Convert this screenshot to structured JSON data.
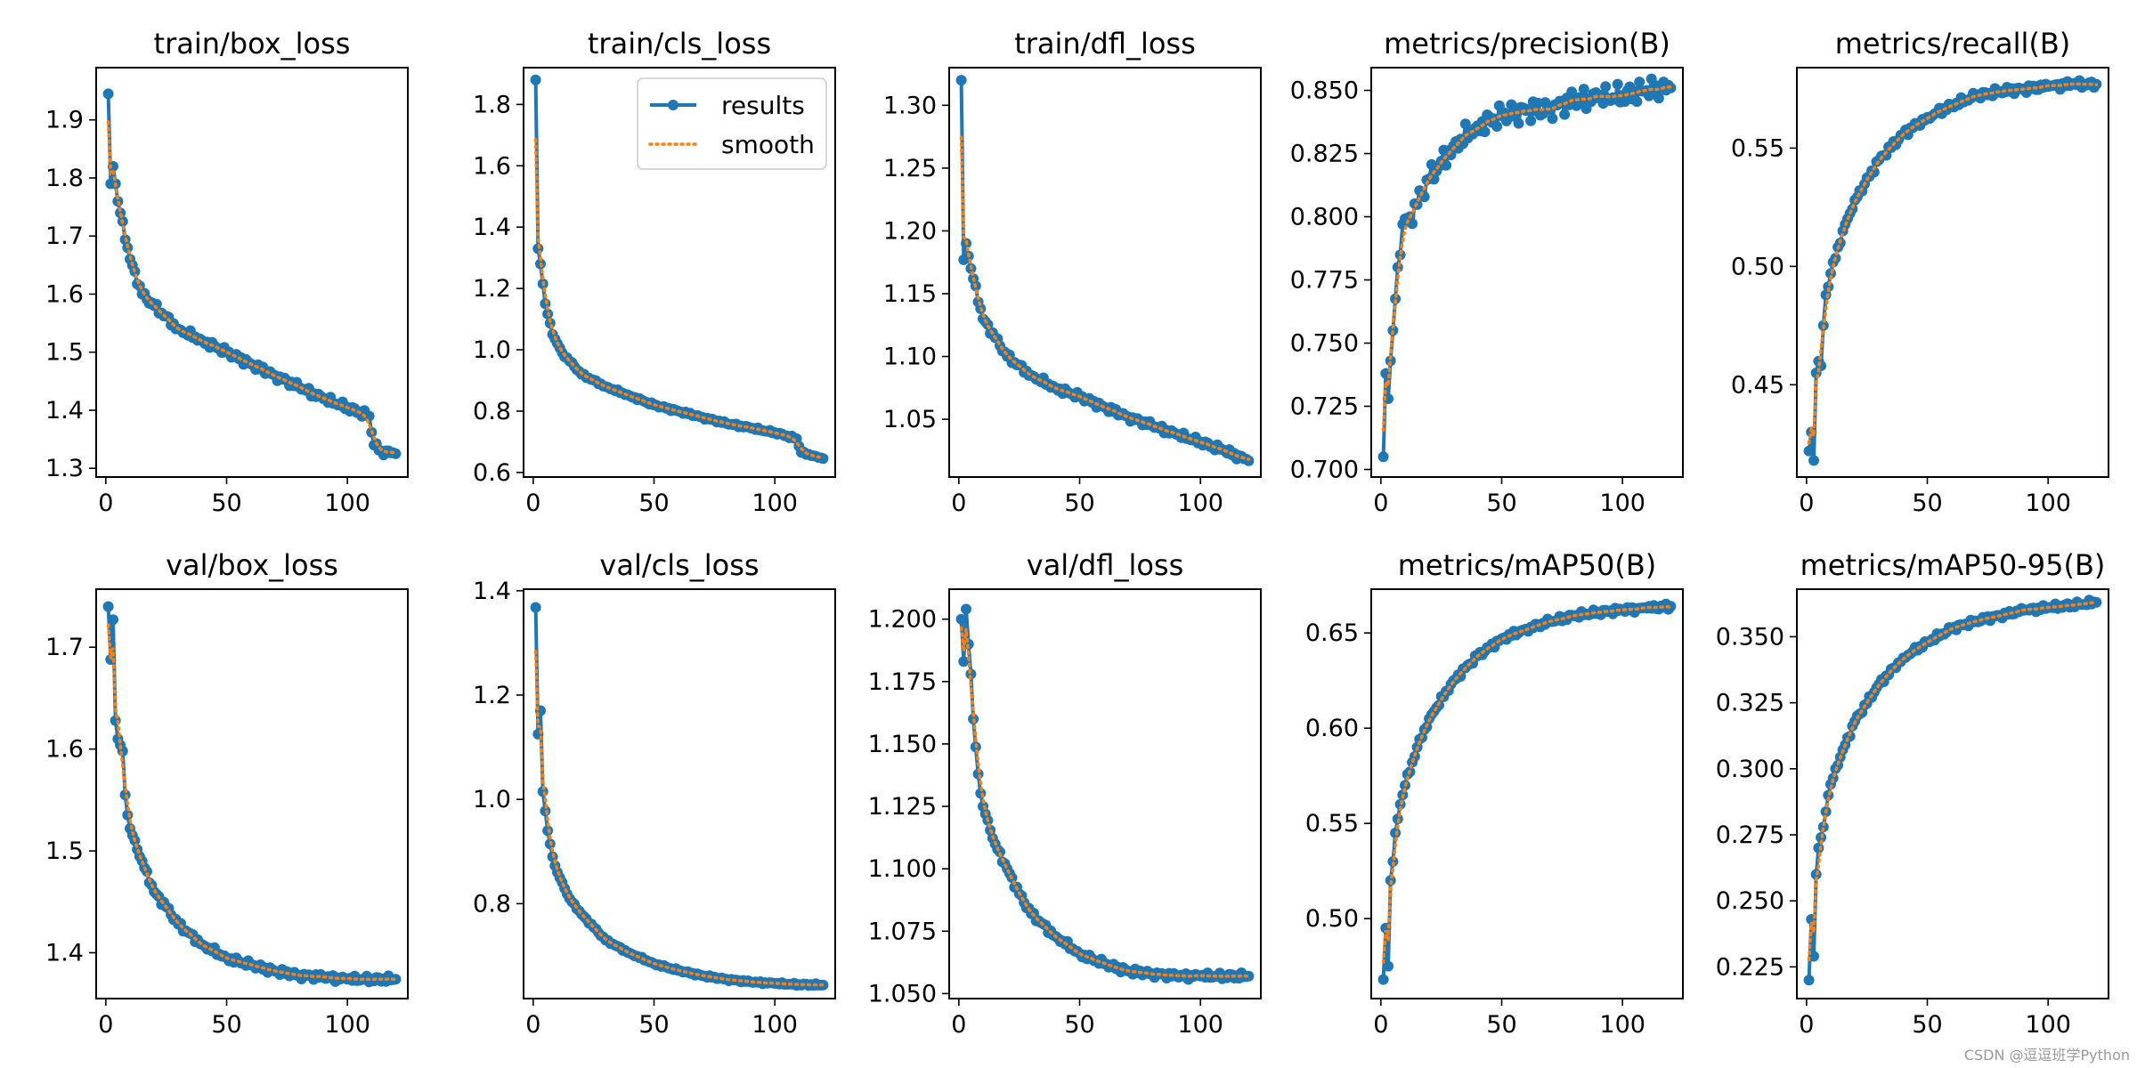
{
  "colors": {
    "results": "#1f77b4",
    "smooth": "#ff7f0e"
  },
  "legend": {
    "results_label": "results",
    "smooth_label": "smooth"
  },
  "watermark": "CSDN @逗逗班学Python",
  "chart_data": [
    {
      "type": "line",
      "title": "train/box_loss",
      "xlim": [
        -4,
        125
      ],
      "ylim": [
        1.285,
        1.99
      ],
      "x_ticks": [
        0,
        50,
        100
      ],
      "y_ticks": [
        1.3,
        1.4,
        1.5,
        1.6,
        1.7,
        1.8,
        1.9
      ],
      "y_tick_labels": [
        "1.3",
        "1.4",
        "1.5",
        "1.6",
        "1.7",
        "1.8",
        "1.9"
      ],
      "epochs": 120,
      "anchors": [
        [
          1,
          1.945
        ],
        [
          2,
          1.79
        ],
        [
          3,
          1.82
        ],
        [
          5,
          1.76
        ],
        [
          10,
          1.66
        ],
        [
          15,
          1.6
        ],
        [
          20,
          1.58
        ],
        [
          30,
          1.54
        ],
        [
          40,
          1.52
        ],
        [
          50,
          1.5
        ],
        [
          60,
          1.48
        ],
        [
          70,
          1.46
        ],
        [
          80,
          1.44
        ],
        [
          90,
          1.42
        ],
        [
          100,
          1.405
        ],
        [
          109,
          1.39
        ],
        [
          111,
          1.34
        ],
        [
          114,
          1.33
        ],
        [
          120,
          1.325
        ]
      ],
      "wiggle": 0.006,
      "legend": false
    },
    {
      "type": "line",
      "title": "train/cls_loss",
      "xlim": [
        -4,
        125
      ],
      "ylim": [
        0.585,
        1.92
      ],
      "x_ticks": [
        0,
        50,
        100
      ],
      "y_ticks": [
        0.6,
        0.8,
        1.0,
        1.2,
        1.4,
        1.6,
        1.8
      ],
      "y_tick_labels": [
        "0.6",
        "0.8",
        "1.0",
        "1.2",
        "1.4",
        "1.6",
        "1.8"
      ],
      "epochs": 120,
      "anchors": [
        [
          1,
          1.88
        ],
        [
          2,
          1.33
        ],
        [
          3,
          1.28
        ],
        [
          5,
          1.15
        ],
        [
          8,
          1.05
        ],
        [
          12,
          0.99
        ],
        [
          20,
          0.92
        ],
        [
          30,
          0.88
        ],
        [
          40,
          0.85
        ],
        [
          50,
          0.82
        ],
        [
          60,
          0.8
        ],
        [
          70,
          0.78
        ],
        [
          80,
          0.76
        ],
        [
          90,
          0.745
        ],
        [
          100,
          0.73
        ],
        [
          109,
          0.71
        ],
        [
          111,
          0.665
        ],
        [
          115,
          0.655
        ],
        [
          120,
          0.645
        ]
      ],
      "wiggle": 0.004,
      "legend": true
    },
    {
      "type": "line",
      "title": "train/dfl_loss",
      "xlim": [
        -4,
        125
      ],
      "ylim": [
        1.004,
        1.33
      ],
      "x_ticks": [
        0,
        50,
        100
      ],
      "y_ticks": [
        1.05,
        1.1,
        1.15,
        1.2,
        1.25,
        1.3
      ],
      "y_tick_labels": [
        "1.05",
        "1.10",
        "1.15",
        "1.20",
        "1.25",
        "1.30"
      ],
      "epochs": 120,
      "anchors": [
        [
          1,
          1.32
        ],
        [
          2,
          1.177
        ],
        [
          3,
          1.19
        ],
        [
          5,
          1.17
        ],
        [
          10,
          1.13
        ],
        [
          15,
          1.115
        ],
        [
          20,
          1.1
        ],
        [
          30,
          1.085
        ],
        [
          40,
          1.075
        ],
        [
          50,
          1.068
        ],
        [
          60,
          1.06
        ],
        [
          70,
          1.052
        ],
        [
          80,
          1.045
        ],
        [
          90,
          1.038
        ],
        [
          100,
          1.032
        ],
        [
          110,
          1.025
        ],
        [
          120,
          1.017
        ]
      ],
      "wiggle": 0.0025,
      "legend": false
    },
    {
      "type": "line",
      "title": "metrics/precision(B)",
      "xlim": [
        -4,
        125
      ],
      "ylim": [
        0.697,
        0.859
      ],
      "x_ticks": [
        0,
        50,
        100
      ],
      "y_ticks": [
        0.7,
        0.725,
        0.75,
        0.775,
        0.8,
        0.825,
        0.85
      ],
      "y_tick_labels": [
        "0.700",
        "0.725",
        "0.750",
        "0.775",
        "0.800",
        "0.825",
        "0.850"
      ],
      "epochs": 120,
      "anchors": [
        [
          1,
          0.705
        ],
        [
          2,
          0.738
        ],
        [
          3,
          0.728
        ],
        [
          4,
          0.743
        ],
        [
          5,
          0.755
        ],
        [
          7,
          0.78
        ],
        [
          9,
          0.797
        ],
        [
          12,
          0.8
        ],
        [
          20,
          0.815
        ],
        [
          30,
          0.828
        ],
        [
          40,
          0.836
        ],
        [
          50,
          0.84
        ],
        [
          60,
          0.842
        ],
        [
          70,
          0.843
        ],
        [
          80,
          0.846
        ],
        [
          90,
          0.847
        ],
        [
          100,
          0.848
        ],
        [
          110,
          0.85
        ],
        [
          120,
          0.851
        ]
      ],
      "wiggle": 0.004,
      "legend": false
    },
    {
      "type": "line",
      "title": "metrics/recall(B)",
      "xlim": [
        -4,
        125
      ],
      "ylim": [
        0.411,
        0.584
      ],
      "x_ticks": [
        0,
        50,
        100
      ],
      "y_ticks": [
        0.45,
        0.5,
        0.55
      ],
      "y_tick_labels": [
        "0.45",
        "0.50",
        "0.55"
      ],
      "epochs": 120,
      "anchors": [
        [
          1,
          0.422
        ],
        [
          2,
          0.43
        ],
        [
          3,
          0.418
        ],
        [
          4,
          0.455
        ],
        [
          5,
          0.46
        ],
        [
          6,
          0.458
        ],
        [
          7,
          0.475
        ],
        [
          8,
          0.488
        ],
        [
          10,
          0.497
        ],
        [
          15,
          0.515
        ],
        [
          20,
          0.528
        ],
        [
          30,
          0.545
        ],
        [
          40,
          0.556
        ],
        [
          50,
          0.563
        ],
        [
          60,
          0.568
        ],
        [
          70,
          0.572
        ],
        [
          80,
          0.574
        ],
        [
          90,
          0.575
        ],
        [
          100,
          0.576
        ],
        [
          110,
          0.577
        ],
        [
          120,
          0.577
        ]
      ],
      "wiggle": 0.0015,
      "legend": false
    },
    {
      "type": "line",
      "title": "val/box_loss",
      "xlim": [
        -4,
        125
      ],
      "ylim": [
        1.355,
        1.757
      ],
      "x_ticks": [
        0,
        50,
        100
      ],
      "y_ticks": [
        1.4,
        1.5,
        1.6,
        1.7
      ],
      "y_tick_labels": [
        "1.4",
        "1.5",
        "1.6",
        "1.7"
      ],
      "epochs": 120,
      "anchors": [
        [
          1,
          1.74
        ],
        [
          2,
          1.688
        ],
        [
          3,
          1.727
        ],
        [
          4,
          1.628
        ],
        [
          5,
          1.61
        ],
        [
          7,
          1.598
        ],
        [
          8,
          1.555
        ],
        [
          10,
          1.522
        ],
        [
          15,
          1.49
        ],
        [
          20,
          1.46
        ],
        [
          25,
          1.445
        ],
        [
          30,
          1.428
        ],
        [
          40,
          1.408
        ],
        [
          50,
          1.395
        ],
        [
          60,
          1.388
        ],
        [
          70,
          1.382
        ],
        [
          80,
          1.378
        ],
        [
          90,
          1.376
        ],
        [
          100,
          1.374
        ],
        [
          110,
          1.374
        ],
        [
          120,
          1.374
        ]
      ],
      "wiggle": 0.003,
      "legend": false
    },
    {
      "type": "line",
      "title": "val/cls_loss",
      "xlim": [
        -4,
        125
      ],
      "ylim": [
        0.618,
        1.403
      ],
      "x_ticks": [
        0,
        50,
        100
      ],
      "y_ticks": [
        0.8,
        1.0,
        1.2,
        1.4
      ],
      "y_tick_labels": [
        "0.8",
        "1.0",
        "1.2",
        "1.4"
      ],
      "epochs": 120,
      "anchors": [
        [
          1,
          1.368
        ],
        [
          2,
          1.125
        ],
        [
          3,
          1.17
        ],
        [
          4,
          1.015
        ],
        [
          6,
          0.94
        ],
        [
          8,
          0.89
        ],
        [
          10,
          0.86
        ],
        [
          15,
          0.81
        ],
        [
          20,
          0.78
        ],
        [
          30,
          0.73
        ],
        [
          40,
          0.705
        ],
        [
          50,
          0.685
        ],
        [
          60,
          0.672
        ],
        [
          70,
          0.662
        ],
        [
          80,
          0.655
        ],
        [
          90,
          0.65
        ],
        [
          100,
          0.647
        ],
        [
          110,
          0.645
        ],
        [
          120,
          0.644
        ]
      ],
      "wiggle": 0.002,
      "legend": false
    },
    {
      "type": "line",
      "title": "val/dfl_loss",
      "xlim": [
        -4,
        125
      ],
      "ylim": [
        1.048,
        1.212
      ],
      "x_ticks": [
        0,
        50,
        100
      ],
      "y_ticks": [
        1.05,
        1.075,
        1.1,
        1.125,
        1.15,
        1.175,
        1.2
      ],
      "y_tick_labels": [
        "1.050",
        "1.075",
        "1.100",
        "1.125",
        "1.150",
        "1.175",
        "1.200"
      ],
      "epochs": 120,
      "anchors": [
        [
          1,
          1.2
        ],
        [
          2,
          1.183
        ],
        [
          3,
          1.204
        ],
        [
          4,
          1.19
        ],
        [
          5,
          1.178
        ],
        [
          6,
          1.16
        ],
        [
          8,
          1.138
        ],
        [
          10,
          1.125
        ],
        [
          15,
          1.11
        ],
        [
          20,
          1.1
        ],
        [
          25,
          1.09
        ],
        [
          30,
          1.082
        ],
        [
          40,
          1.073
        ],
        [
          50,
          1.066
        ],
        [
          60,
          1.062
        ],
        [
          70,
          1.059
        ],
        [
          80,
          1.058
        ],
        [
          90,
          1.057
        ],
        [
          100,
          1.057
        ],
        [
          110,
          1.057
        ],
        [
          120,
          1.057
        ]
      ],
      "wiggle": 0.0012,
      "legend": false
    },
    {
      "type": "line",
      "title": "metrics/mAP50(B)",
      "xlim": [
        -4,
        125
      ],
      "ylim": [
        0.458,
        0.673
      ],
      "x_ticks": [
        0,
        50,
        100
      ],
      "y_ticks": [
        0.5,
        0.55,
        0.6,
        0.65
      ],
      "y_tick_labels": [
        "0.50",
        "0.55",
        "0.60",
        "0.65"
      ],
      "epochs": 120,
      "anchors": [
        [
          1,
          0.468
        ],
        [
          2,
          0.495
        ],
        [
          3,
          0.475
        ],
        [
          4,
          0.52
        ],
        [
          5,
          0.53
        ],
        [
          6,
          0.545
        ],
        [
          8,
          0.56
        ],
        [
          10,
          0.57
        ],
        [
          15,
          0.59
        ],
        [
          20,
          0.605
        ],
        [
          30,
          0.625
        ],
        [
          40,
          0.638
        ],
        [
          50,
          0.647
        ],
        [
          60,
          0.652
        ],
        [
          70,
          0.656
        ],
        [
          80,
          0.659
        ],
        [
          90,
          0.661
        ],
        [
          100,
          0.662
        ],
        [
          110,
          0.663
        ],
        [
          120,
          0.664
        ]
      ],
      "wiggle": 0.0015,
      "legend": false
    },
    {
      "type": "line",
      "title": "metrics/mAP50-95(B)",
      "xlim": [
        -4,
        125
      ],
      "ylim": [
        0.213,
        0.368
      ],
      "x_ticks": [
        0,
        50,
        100
      ],
      "y_ticks": [
        0.225,
        0.25,
        0.275,
        0.3,
        0.325,
        0.35
      ],
      "y_tick_labels": [
        "0.225",
        "0.250",
        "0.275",
        "0.300",
        "0.325",
        "0.350"
      ],
      "epochs": 120,
      "anchors": [
        [
          1,
          0.22
        ],
        [
          2,
          0.243
        ],
        [
          3,
          0.229
        ],
        [
          4,
          0.26
        ],
        [
          5,
          0.27
        ],
        [
          7,
          0.278
        ],
        [
          9,
          0.29
        ],
        [
          12,
          0.3
        ],
        [
          20,
          0.318
        ],
        [
          30,
          0.332
        ],
        [
          40,
          0.342
        ],
        [
          50,
          0.348
        ],
        [
          60,
          0.353
        ],
        [
          70,
          0.356
        ],
        [
          80,
          0.358
        ],
        [
          90,
          0.36
        ],
        [
          100,
          0.361
        ],
        [
          110,
          0.362
        ],
        [
          120,
          0.363
        ]
      ],
      "wiggle": 0.001,
      "legend": false
    }
  ]
}
